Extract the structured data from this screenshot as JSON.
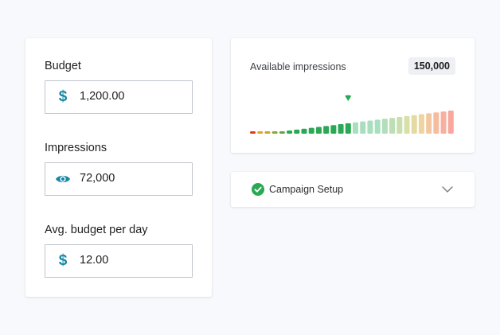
{
  "form": {
    "budget": {
      "label": "Budget",
      "value": "1,200.00",
      "icon": "dollar-icon"
    },
    "impressions": {
      "label": "Impressions",
      "value": "72,000",
      "icon": "eye-icon"
    },
    "avg_budget": {
      "label": "Avg. budget per day",
      "value": "12.00",
      "icon": "dollar-icon"
    },
    "icon_color": "#1787a5"
  },
  "impressions_panel": {
    "label": "Available impressions",
    "total": "150,000",
    "chart_data": {
      "type": "bar",
      "values": [
        0.5,
        1,
        1.5,
        2,
        2.5,
        3.5,
        4.5,
        5.5,
        6.5,
        7.5,
        8.5,
        9.5,
        10.5,
        11.5,
        12.5,
        13.5,
        14.5,
        15.5,
        16.5,
        17.5,
        18.5,
        19.5,
        20.5,
        21.5,
        22.5,
        23.5,
        24.5,
        25.5
      ],
      "colors": [
        "#e03a1e",
        "#e7a32b",
        "#c5a830",
        "#87a836",
        "#5fa93a",
        "#2aa955",
        "#2aa955",
        "#2aa955",
        "#2aa955",
        "#2aa955",
        "#2aa955",
        "#2aa955",
        "#2aa955",
        "#2aa955",
        "#a9dfbf",
        "#a9dfbf",
        "#a9dfbf",
        "#a9dfbf",
        "#b2deba",
        "#bedfb3",
        "#c9dfae",
        "#d8dfa8",
        "#e4daa2",
        "#f0d3a0",
        "#f3c8a0",
        "#f5bca0",
        "#f6b0a0",
        "#f7a79d"
      ],
      "marker_index": 13,
      "marker_color": "#2aa955"
    }
  },
  "setup": {
    "label": "Campaign Setup",
    "check_color": "#2aa955"
  }
}
